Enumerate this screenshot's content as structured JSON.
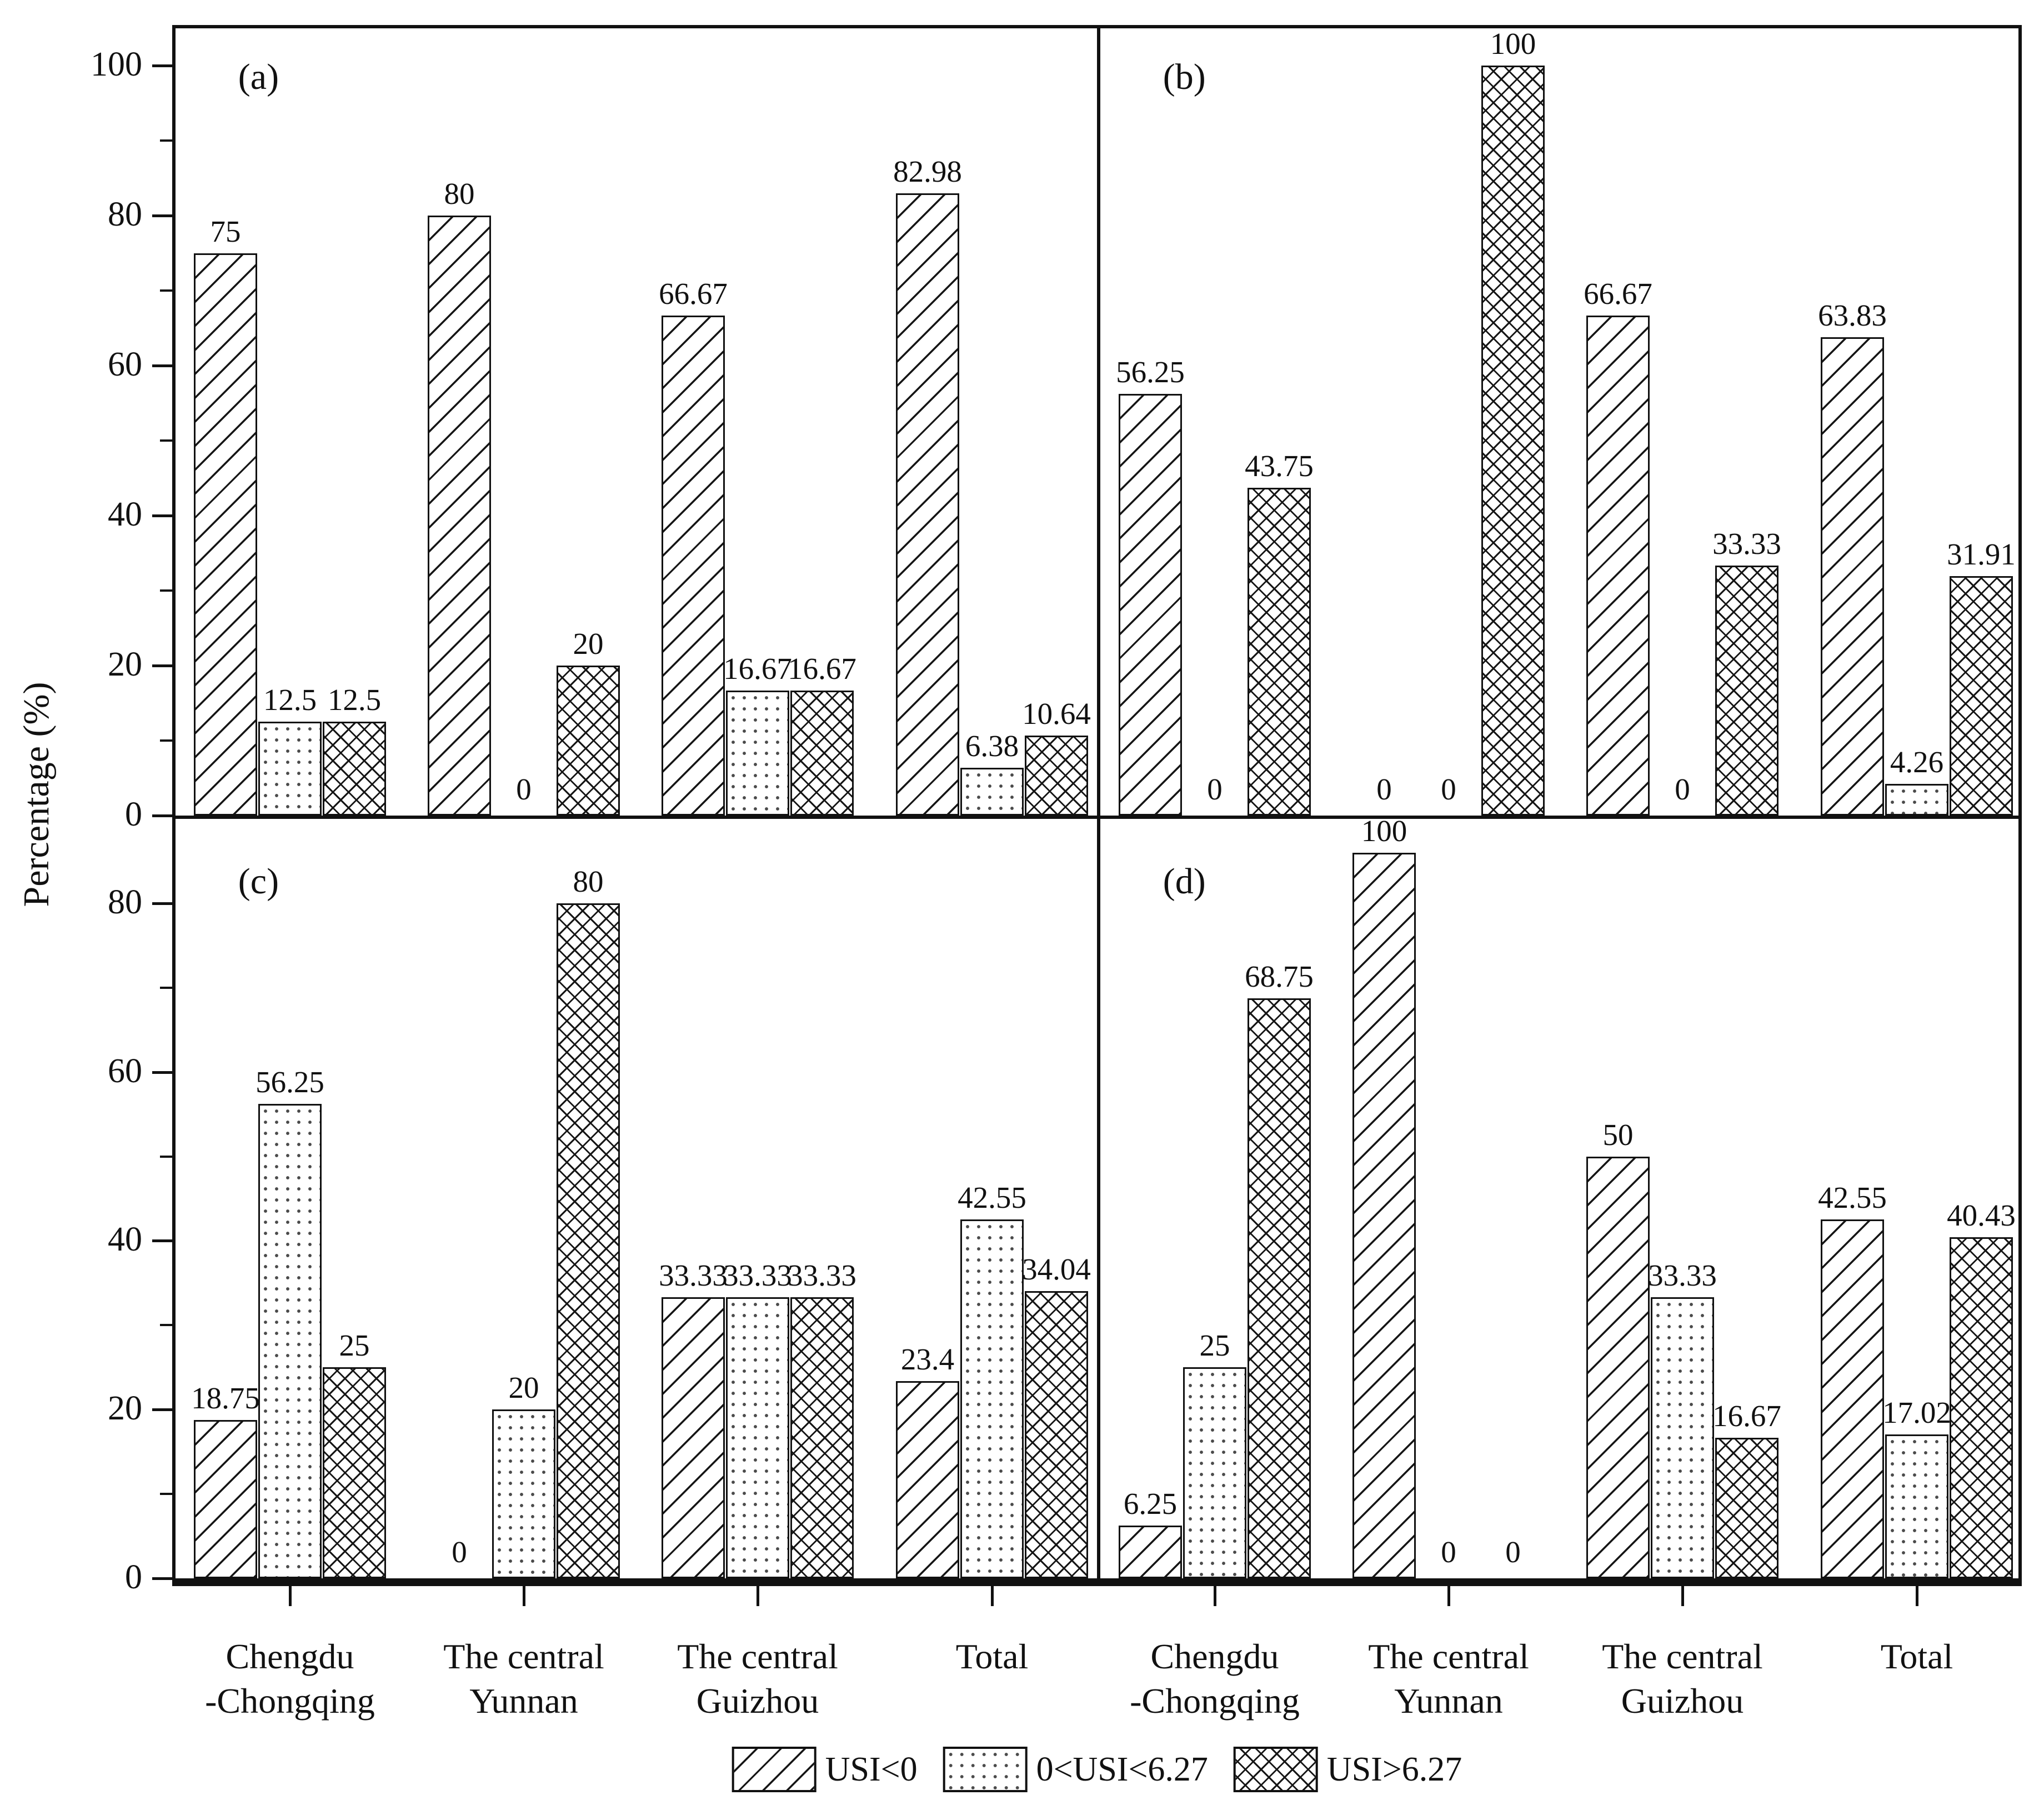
{
  "figure": {
    "y_axis_title": "Percentage (%)"
  },
  "legend": {
    "items": [
      {
        "pattern": "diagonal-hatch",
        "label": "USI<0"
      },
      {
        "pattern": "dot-hatch",
        "label": "0<USI<6.27"
      },
      {
        "pattern": "cross-hatch",
        "label": "USI>6.27"
      }
    ]
  },
  "chart_data": {
    "type": "bar",
    "title": "",
    "ylabel": "Percentage (%)",
    "grid": false,
    "legend_position": "bottom-center",
    "series_names": [
      "USI<0",
      "0<USI<6.27",
      "USI>6.27"
    ],
    "series_patterns": [
      "diagonal-hatch",
      "dot-hatch",
      "cross-hatch"
    ],
    "categories": [
      "Chengdu -Chongqing",
      "The central Yunnan",
      "The central Guizhou",
      "Total"
    ],
    "category_lines": [
      [
        "Chengdu",
        "-Chongqing"
      ],
      [
        "The central",
        "Yunnan"
      ],
      [
        "The central",
        "Guizhou"
      ],
      [
        "Total",
        ""
      ]
    ],
    "panels": [
      {
        "tag": "(a)",
        "ylim": [
          0,
          105
        ],
        "yticks": [
          0,
          20,
          40,
          60,
          80,
          100
        ],
        "yticks_minor": [
          10,
          30,
          50,
          70,
          90
        ],
        "series": [
          {
            "name": "USI<0",
            "values": [
              75,
              80,
              66.67,
              82.98
            ]
          },
          {
            "name": "0<USI<6.27",
            "values": [
              12.5,
              0,
              16.67,
              6.38
            ]
          },
          {
            "name": "USI>6.27",
            "values": [
              12.5,
              20,
              16.67,
              10.64
            ]
          }
        ]
      },
      {
        "tag": "(b)",
        "ylim": [
          0,
          105
        ],
        "yticks": [
          0,
          20,
          40,
          60,
          80,
          100
        ],
        "yticks_minor": [
          10,
          30,
          50,
          70,
          90
        ],
        "series": [
          {
            "name": "USI<0",
            "values": [
              56.25,
              0,
              66.67,
              63.83
            ]
          },
          {
            "name": "0<USI<6.27",
            "values": [
              0,
              0,
              0,
              4.26
            ]
          },
          {
            "name": "USI>6.27",
            "values": [
              43.75,
              100,
              33.33,
              31.91
            ]
          }
        ]
      },
      {
        "tag": "(c)",
        "ylim": [
          0,
          90
        ],
        "yticks": [
          0,
          20,
          40,
          60,
          80
        ],
        "yticks_minor": [
          10,
          30,
          50,
          70
        ],
        "series": [
          {
            "name": "USI<0",
            "values": [
              18.75,
              0,
              33.33,
              23.4
            ]
          },
          {
            "name": "0<USI<6.27",
            "values": [
              56.25,
              20,
              33.33,
              42.55
            ]
          },
          {
            "name": "USI>6.27",
            "values": [
              25,
              80,
              33.33,
              34.04
            ]
          }
        ]
      },
      {
        "tag": "(d)",
        "ylim": [
          0,
          90
        ],
        "yticks": [
          0,
          20,
          40,
          60,
          80
        ],
        "yticks_minor": [
          10,
          30,
          50,
          70
        ],
        "series": [
          {
            "name": "USI<0",
            "values": [
              6.25,
              100,
              50,
              42.55
            ]
          },
          {
            "name": "0<USI<6.27",
            "values": [
              25,
              0,
              33.33,
              17.02
            ]
          },
          {
            "name": "USI>6.27",
            "values": [
              68.75,
              0,
              16.67,
              40.43
            ]
          }
        ]
      }
    ]
  }
}
